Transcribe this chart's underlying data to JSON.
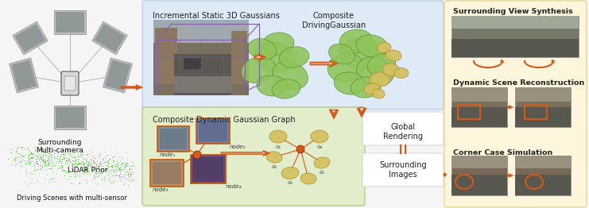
{
  "bg": "#f5f5f5",
  "arrow_color": "#d4581a",
  "green_blob": "#8fc45a",
  "yellow_blob": "#d4c060",
  "panel_blue_bg": "#deeaf5",
  "panel_blue_edge": "#b0c8e0",
  "panel_green_bg": "#e2edcc",
  "panel_green_edge": "#a8c070",
  "panel_yellow_bg": "#fdf6dc",
  "panel_yellow_edge": "#e0d080",
  "white_box_bg": "#ffffff",
  "white_box_edge": "#cccccc",
  "node_edge": "#cc5500",
  "scene_box_purple": "#8060a0",
  "labels": {
    "top_mid_title": "Incremental Static 3D Gaussians",
    "composite_label": "Composite\nDrivingGaussian",
    "bot_mid_title": "Composite Dynamic Gaussian Graph",
    "surrounding_view": "Surrounding View Synthesis",
    "dynamic_scene": "Dynamic Scene Reconstruction",
    "corner_case": "Corner Case Simulation",
    "surrounding_multi": "Surrounding\nMulti-camera",
    "lidar_prior": "LiDAR Prior",
    "driving_scenes": "Driving Scenes with multi-sensor",
    "global_rendering": "Global\nRendering",
    "surrounding_images": "Surrounding\nImages"
  },
  "node_labels": [
    "node₁",
    "node₂",
    "node₃",
    "node₄"
  ],
  "graph_labels": [
    "o₁",
    "o₂",
    "o₃",
    "o₄",
    "o₅"
  ]
}
